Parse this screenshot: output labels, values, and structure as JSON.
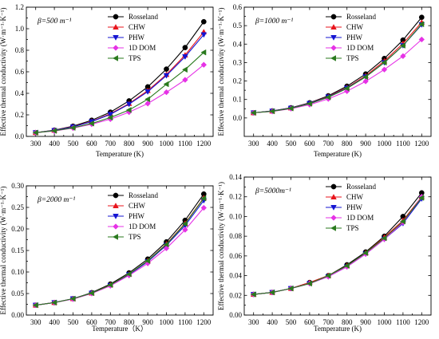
{
  "style": {
    "series_colors": {
      "Rosseland": "#000000",
      "CHW": "#e8141c",
      "PHW": "#1414d2",
      "1D DOM": "#e632e6",
      "TPS": "#2a7a1e"
    },
    "series_markers": {
      "Rosseland": "circle",
      "CHW": "triangle-up",
      "PHW": "triangle-down",
      "1D DOM": "diamond",
      "TPS": "triangle-left"
    }
  },
  "chart_data": [
    {
      "type": "line",
      "panel_label": "β=500 m⁻¹",
      "xlabel": "Temperature (K)",
      "ylabel": "Effective thermal conductivity (W·m⁻¹·K⁻¹)",
      "xlim": [
        250,
        1250
      ],
      "ylim": [
        0,
        1.2
      ],
      "x_ticks": [
        300,
        400,
        500,
        600,
        700,
        800,
        900,
        1000,
        1100,
        1200
      ],
      "x_tick_labels": [
        "300",
        "400",
        "500",
        "600",
        "700",
        "800",
        "900",
        "1000",
        "1100",
        "1200"
      ],
      "y_ticks": [
        0,
        0.2,
        0.4,
        0.6,
        0.8,
        1.0,
        1.2
      ],
      "y_tick_labels": [
        "0.0",
        "0.2",
        "0.4",
        "0.6",
        "0.8",
        "1.0",
        "1.2"
      ],
      "legend_position": "top-left",
      "x": [
        300,
        400,
        500,
        600,
        700,
        800,
        900,
        1000,
        1100,
        1200
      ],
      "series": [
        {
          "name": "Rosseland",
          "values": [
            0.035,
            0.058,
            0.095,
            0.15,
            0.225,
            0.33,
            0.46,
            0.625,
            0.825,
            1.065
          ]
        },
        {
          "name": "CHW",
          "values": [
            0.035,
            0.056,
            0.09,
            0.14,
            0.21,
            0.305,
            0.425,
            0.575,
            0.755,
            0.97
          ]
        },
        {
          "name": "PHW",
          "values": [
            0.035,
            0.055,
            0.088,
            0.137,
            0.205,
            0.3,
            0.415,
            0.565,
            0.74,
            0.945
          ]
        },
        {
          "name": "1D DOM",
          "values": [
            0.035,
            0.05,
            0.077,
            0.113,
            0.16,
            0.225,
            0.305,
            0.41,
            0.525,
            0.665
          ]
        },
        {
          "name": "TPS",
          "values": [
            0.035,
            0.052,
            0.08,
            0.12,
            0.175,
            0.245,
            0.345,
            0.485,
            0.62,
            0.78
          ]
        }
      ]
    },
    {
      "type": "line",
      "panel_label": "β=1000 m⁻¹",
      "xlabel": "Temperature (K)",
      "ylabel": "Effective thermal conductivity (W·m⁻¹·K⁻¹)",
      "xlim": [
        250,
        1250
      ],
      "ylim": [
        -0.1,
        0.6
      ],
      "x_ticks": [
        300,
        400,
        500,
        600,
        700,
        800,
        900,
        1000,
        1100,
        1200
      ],
      "x_tick_labels": [
        "300",
        "400",
        "500",
        "600",
        "700",
        "800",
        "900",
        "1000",
        "1100",
        "1200"
      ],
      "y_ticks": [
        0,
        0.1,
        0.2,
        0.3,
        0.4,
        0.5,
        0.6
      ],
      "y_tick_labels": [
        "0.0",
        "0.1",
        "0.2",
        "0.3",
        "0.4",
        "0.5",
        "0.6"
      ],
      "legend_position": "top-left",
      "x": [
        300,
        400,
        500,
        600,
        700,
        800,
        900,
        1000,
        1100,
        1200
      ],
      "series": [
        {
          "name": "Rosseland",
          "values": [
            0.028,
            0.038,
            0.055,
            0.082,
            0.12,
            0.172,
            0.238,
            0.322,
            0.422,
            0.545
          ]
        },
        {
          "name": "CHW",
          "values": [
            0.028,
            0.037,
            0.054,
            0.08,
            0.116,
            0.165,
            0.228,
            0.308,
            0.403,
            0.518
          ]
        },
        {
          "name": "PHW",
          "values": [
            0.028,
            0.037,
            0.053,
            0.079,
            0.114,
            0.162,
            0.223,
            0.3,
            0.392,
            0.505
          ]
        },
        {
          "name": "1D DOM",
          "values": [
            0.028,
            0.035,
            0.05,
            0.072,
            0.103,
            0.145,
            0.198,
            0.262,
            0.335,
            0.425
          ]
        },
        {
          "name": "TPS",
          "values": [
            0.028,
            0.036,
            0.052,
            0.077,
            0.112,
            0.16,
            0.222,
            0.3,
            0.392,
            0.508
          ]
        }
      ]
    },
    {
      "type": "line",
      "panel_label": "β=2000 m⁻¹",
      "xlabel": "Temperature（K）",
      "ylabel": "Effective thermal conductivity (W·m⁻¹·K⁻¹)",
      "xlim": [
        250,
        1250
      ],
      "ylim": [
        0,
        0.3
      ],
      "x_ticks": [
        300,
        400,
        500,
        600,
        700,
        800,
        900,
        1000,
        1100,
        1200
      ],
      "x_tick_labels": [
        "300",
        "400",
        "500",
        "600",
        "700",
        "800",
        "900",
        "1000",
        "1100",
        "1200"
      ],
      "y_ticks": [
        0,
        0.05,
        0.1,
        0.15,
        0.2,
        0.25,
        0.3
      ],
      "y_tick_labels": [
        "0.00",
        "0.05",
        "0.10",
        "0.15",
        "0.20",
        "0.25",
        "0.30"
      ],
      "legend_position": "top-left",
      "x": [
        300,
        400,
        500,
        600,
        700,
        800,
        900,
        1000,
        1100,
        1200
      ],
      "series": [
        {
          "name": "Rosseland",
          "values": [
            0.023,
            0.029,
            0.038,
            0.052,
            0.072,
            0.098,
            0.13,
            0.17,
            0.22,
            0.281
          ]
        },
        {
          "name": "CHW",
          "values": [
            0.023,
            0.029,
            0.038,
            0.051,
            0.07,
            0.095,
            0.126,
            0.165,
            0.213,
            0.272
          ]
        },
        {
          "name": "PHW",
          "values": [
            0.023,
            0.029,
            0.038,
            0.051,
            0.069,
            0.094,
            0.124,
            0.162,
            0.208,
            0.266
          ]
        },
        {
          "name": "1D DOM",
          "values": [
            0.023,
            0.029,
            0.037,
            0.05,
            0.068,
            0.092,
            0.12,
            0.155,
            0.198,
            0.249
          ]
        },
        {
          "name": "TPS",
          "values": [
            0.023,
            0.029,
            0.038,
            0.051,
            0.07,
            0.095,
            0.126,
            0.164,
            0.212,
            0.271
          ]
        }
      ]
    },
    {
      "type": "line",
      "panel_label": "β=5000m⁻¹",
      "xlabel": "Temperature (K)",
      "ylabel": "Effective thermal conductivity (W·m⁻¹·K⁻¹)",
      "xlim": [
        250,
        1250
      ],
      "ylim": [
        0,
        0.14
      ],
      "x_ticks": [
        300,
        400,
        500,
        600,
        700,
        800,
        900,
        1000,
        1100,
        1200
      ],
      "x_tick_labels": [
        "300",
        "400",
        "500",
        "600",
        "700",
        "800",
        "900",
        "1000",
        "1100",
        "1200"
      ],
      "y_ticks": [
        0,
        0.02,
        0.04,
        0.06,
        0.08,
        0.1,
        0.12,
        0.14
      ],
      "y_tick_labels": [
        "0.00",
        "0.02",
        "0.04",
        "0.06",
        "0.08",
        "0.10",
        "0.12",
        "0.14"
      ],
      "legend_position": "top-left",
      "x": [
        300,
        400,
        500,
        600,
        700,
        800,
        900,
        1000,
        1100,
        1200
      ],
      "series": [
        {
          "name": "Rosseland",
          "values": [
            0.021,
            0.023,
            0.027,
            0.033,
            0.04,
            0.051,
            0.064,
            0.08,
            0.1,
            0.124
          ]
        },
        {
          "name": "CHW",
          "values": [
            0.021,
            0.023,
            0.027,
            0.033,
            0.04,
            0.05,
            0.063,
            0.079,
            0.096,
            0.12
          ]
        },
        {
          "name": "PHW",
          "values": [
            0.021,
            0.023,
            0.027,
            0.032,
            0.039,
            0.049,
            0.062,
            0.077,
            0.093,
            0.118
          ]
        },
        {
          "name": "1D DOM",
          "values": [
            0.021,
            0.023,
            0.027,
            0.032,
            0.039,
            0.049,
            0.062,
            0.077,
            0.094,
            0.12
          ]
        },
        {
          "name": "TPS",
          "values": [
            0.021,
            0.023,
            0.027,
            0.032,
            0.04,
            0.05,
            0.063,
            0.078,
            0.095,
            0.119
          ]
        }
      ]
    }
  ]
}
